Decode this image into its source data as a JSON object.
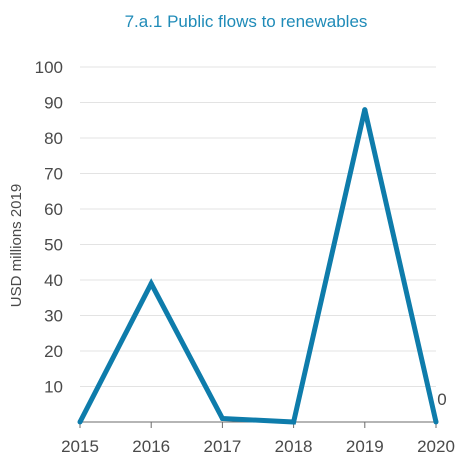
{
  "chart_data": {
    "type": "line",
    "title": "7.a.1 Public flows to renewables",
    "xlabel": "",
    "ylabel": "USD millions 2019",
    "x": [
      "2015",
      "2016",
      "2017",
      "2018",
      "2019",
      "2020"
    ],
    "series": [
      {
        "values": [
          0,
          39,
          1,
          0,
          88,
          0
        ]
      }
    ],
    "ylim": [
      0,
      100
    ],
    "yticks": [
      10,
      20,
      30,
      40,
      50,
      60,
      70,
      80,
      90,
      100
    ],
    "grid": true,
    "legend": "none",
    "annotations": [
      {
        "x": "2020",
        "text": "0"
      }
    ],
    "colors": {
      "title": "#1f8bb8",
      "line": "#0e7cab",
      "grid": "#e3e3e3",
      "tick_text": "#4a4a4a",
      "axis": "#6b6b6b"
    }
  }
}
